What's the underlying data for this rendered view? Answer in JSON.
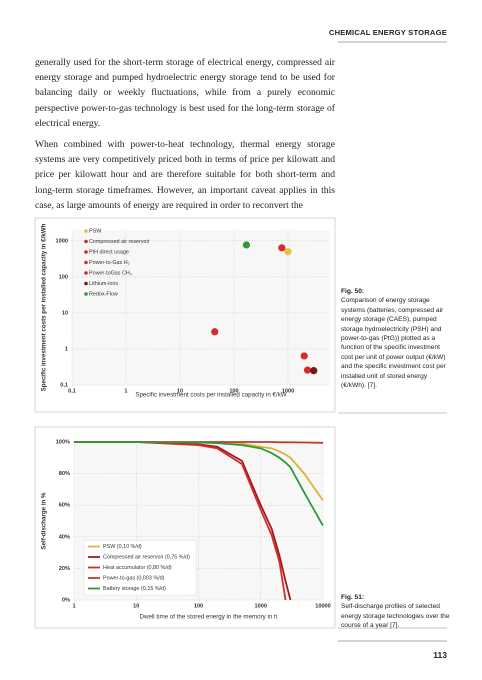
{
  "header": {
    "section": "CHEMICAL ENERGY STORAGE"
  },
  "paragraphs": [
    "generally used for the short-term storage of electrical energy, compressed air energy storage and pumped hydroelectric energy storage tend to be used for balancing daily or weekly fluctuations, while from a purely economic perspective power-to-gas technology is best used for the long-term storage of electrical energy.",
    "When combined with power-to-heat technology, thermal energy storage systems are very competitively priced both in terms of price per kilowatt and price per kilowatt hour and are therefore suitable for both short-term and long-term storage timeframes. However, an important caveat applies in this case, as large amounts of energy are required in order to reconvert the"
  ],
  "figures": [
    {
      "label": "Fig. 50:",
      "caption": "Comparison of energy storage systems (batteries, compressed air energy storage (CAES), pumped storage hydroelectricity (PSH) and power-to-gas (PtG)) plotted as a function of the specific investment cost per unit of power output (€/kW) and the specific investment cost per installed unit of stored energy (€/kWh). [7]."
    },
    {
      "label": "Fig. 51:",
      "caption": "Self-discharge profiles of selected energy storage technologies over the course of a year [7]."
    }
  ],
  "page_number": "113",
  "chart_data": [
    {
      "type": "scatter",
      "x_label": "Specific investment costs per installed capacity in €/kW",
      "y_label": "Specific investment costs per installed capacity in €/kWh",
      "xscale": "log",
      "yscale": "log",
      "grid": true,
      "legend": "top-left",
      "xlim": [
        0.1,
        6000
      ],
      "ylim": [
        0.1,
        2000
      ],
      "xticks": [
        {
          "value": 0.1,
          "label": "0,1"
        },
        1,
        10,
        100,
        1000
      ],
      "yticks": [
        {
          "value": 0.1,
          "label": "0,1"
        },
        1,
        10,
        100,
        1000
      ],
      "series": [
        {
          "name": "PSW",
          "color": "#e3c341",
          "x": [
            1000
          ],
          "values": [
            500
          ]
        },
        {
          "name": "Compressed air reservoir",
          "color": "#d42a2a",
          "x": [
            770
          ],
          "values": [
            640
          ]
        },
        {
          "name": "PtH direct usage",
          "color": "#d42a2a",
          "x": [
            44
          ],
          "values": [
            3
          ]
        },
        {
          "name": "Power-to-Gas H₂",
          "color": "#d42a2a",
          "x": [
            2000
          ],
          "values": [
            0.64
          ]
        },
        {
          "name": "Power-toGas CH₄",
          "color": "#d42a2a",
          "x": [
            2300
          ],
          "values": [
            0.26
          ]
        },
        {
          "name": "Lithium-ions",
          "color": "#7a1515",
          "x": [
            3000
          ],
          "values": [
            0.25
          ]
        },
        {
          "name": "Redox-Flow",
          "color": "#2e9a3a",
          "x": [
            170
          ],
          "values": [
            770
          ]
        }
      ]
    },
    {
      "type": "line",
      "x_label": "Dwell time of the stored energy in the memory in h",
      "y_label": "Self-discharge in %",
      "xscale": "log",
      "yscale": "linear",
      "grid": true,
      "legend": "bottom-left",
      "xlim": [
        1,
        10000
      ],
      "ylim": [
        0,
        100
      ],
      "xticks": [
        1,
        10,
        100,
        1000,
        10000
      ],
      "yticks": [
        {
          "value": 0,
          "label": "0%"
        },
        {
          "value": 20,
          "label": "20%"
        },
        {
          "value": 40,
          "label": "40%"
        },
        {
          "value": 60,
          "label": "60%"
        },
        {
          "value": 80,
          "label": "80%"
        },
        {
          "value": 100,
          "label": "100%"
        }
      ],
      "x": [
        1,
        10,
        100,
        200,
        500,
        1000,
        1500,
        2000,
        2500,
        3000,
        5000,
        10000
      ],
      "series": [
        {
          "name": "PSW (0,10 %/d)",
          "color": "#d9b437",
          "values": [
            100,
            100,
            99.8,
            99.5,
            99,
            97,
            96,
            94,
            92,
            90,
            80,
            63
          ]
        },
        {
          "name": "Compressed air reservoir (0,75 %/d)",
          "color": "#9e1b1b",
          "values": [
            100,
            100,
            98.5,
            97,
            88,
            60,
            45,
            28,
            12,
            0,
            null,
            null
          ]
        },
        {
          "name": "Heat accumulator (0,80 %/d)",
          "color": "#d52b2b",
          "values": [
            100,
            100,
            98,
            96,
            86,
            57,
            41,
            24,
            0,
            null,
            null,
            null
          ]
        },
        {
          "name": "Power-to-gas (0,003 %/d)",
          "color": "#c0392b",
          "values": [
            100,
            100,
            100,
            100,
            100,
            100,
            100,
            99.8,
            99.8,
            99.8,
            99.7,
            99.5
          ]
        },
        {
          "name": "Battery storage (0,15 %/d)",
          "color": "#2e9a3a",
          "values": [
            100,
            100,
            99.7,
            99.3,
            98,
            96,
            93,
            90,
            87,
            84,
            68,
            47
          ]
        }
      ]
    }
  ]
}
